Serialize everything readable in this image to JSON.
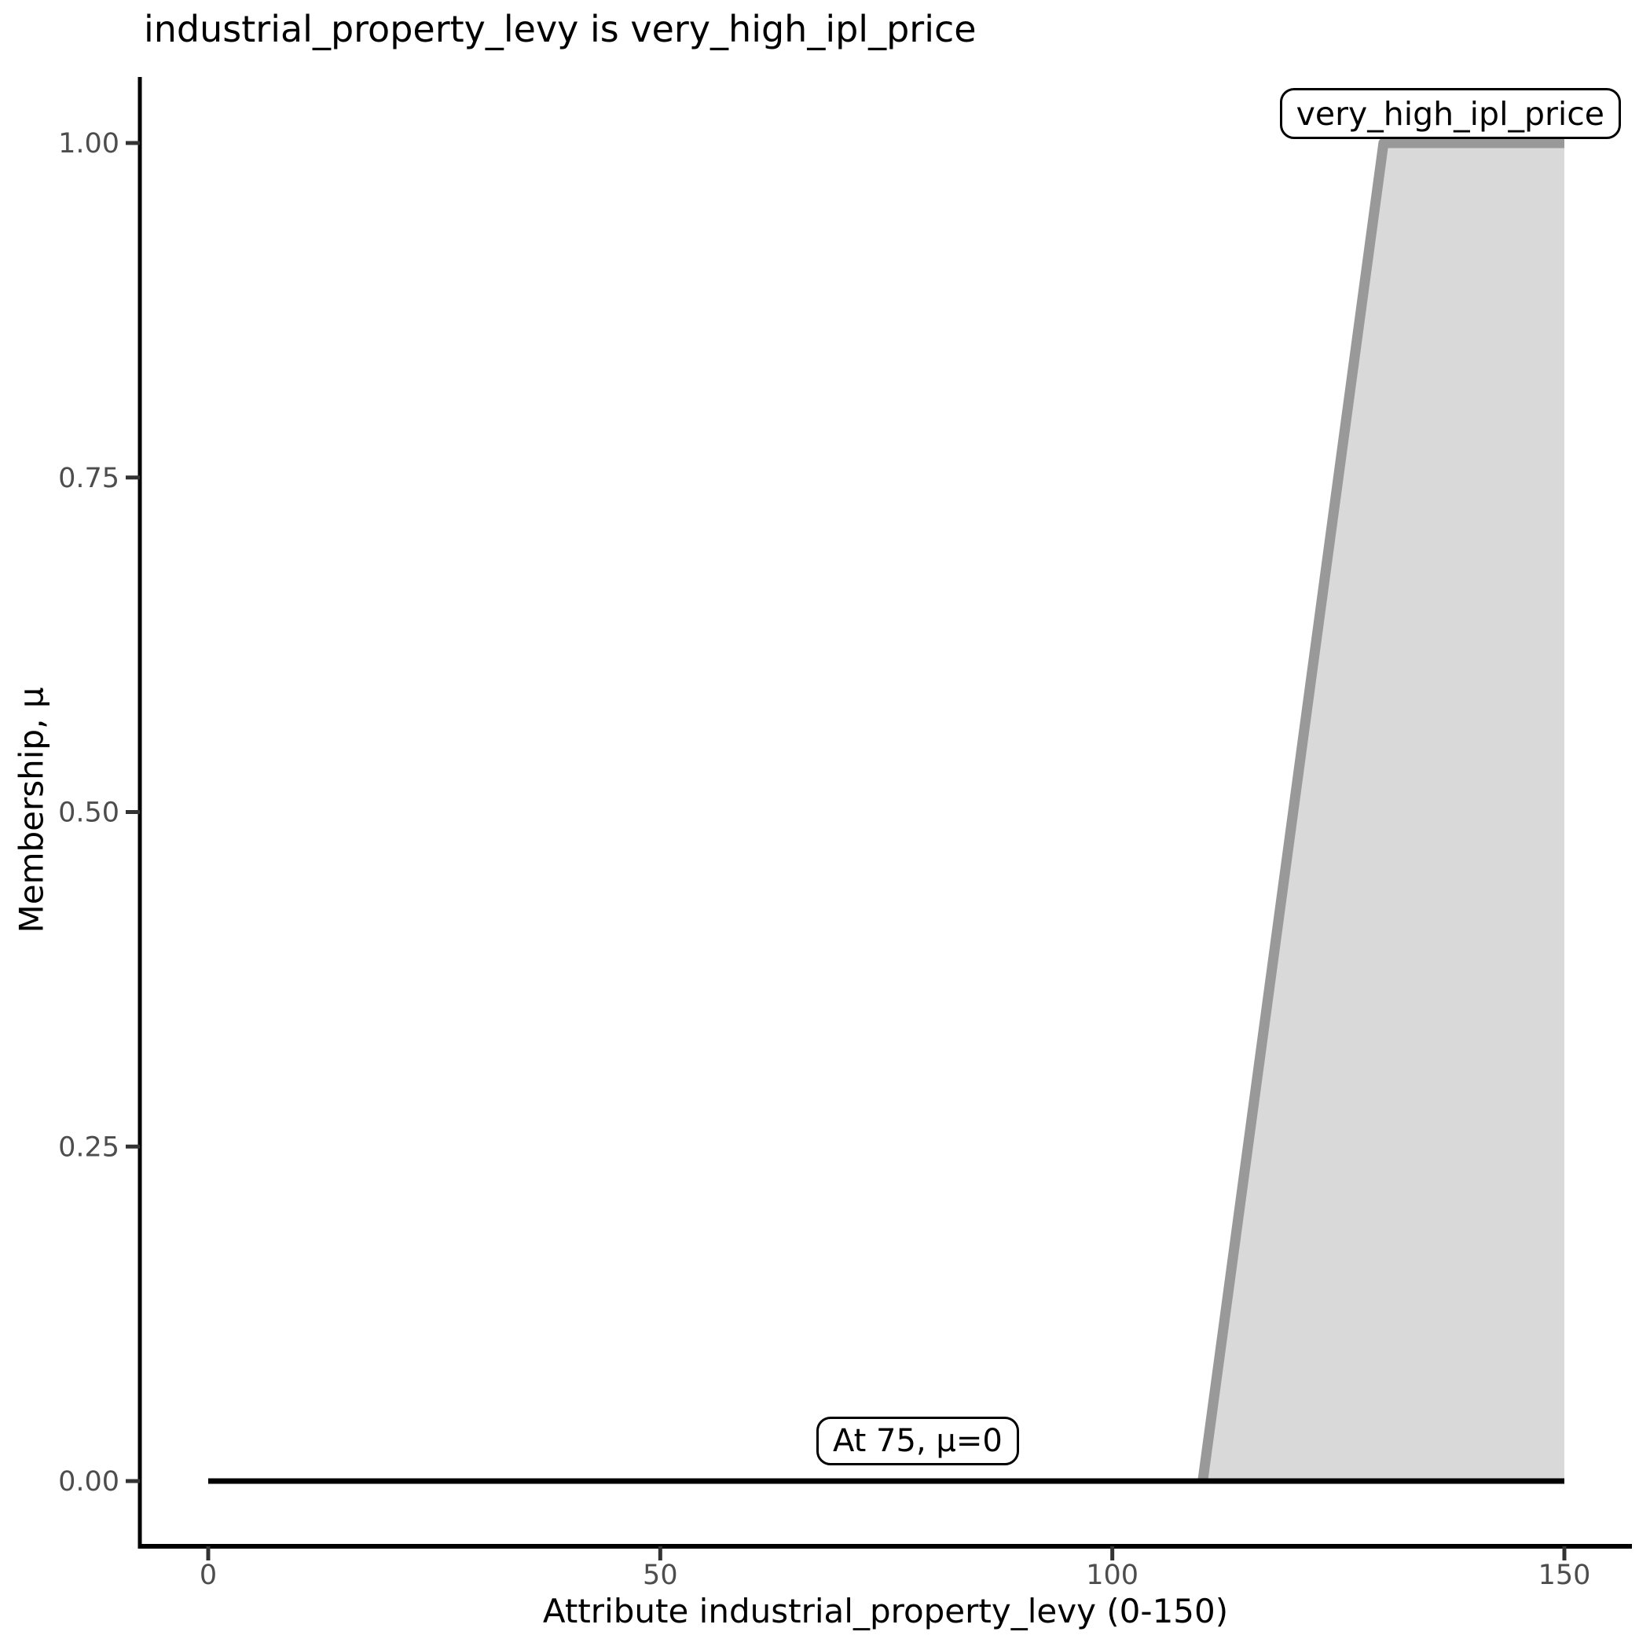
{
  "chart_data": {
    "type": "area",
    "title": "industrial_property_levy is very_high_ipl_price",
    "xlabel": "Attribute industrial_property_levy (0-150)",
    "ylabel": "Membership, μ",
    "xlim": [
      0,
      150
    ],
    "ylim": [
      0,
      1
    ],
    "x_ticks": [
      0,
      50,
      100,
      150
    ],
    "x_tick_labels": [
      "0",
      "50",
      "100",
      "150"
    ],
    "y_ticks": [
      0,
      0.25,
      0.5,
      0.75,
      1
    ],
    "y_tick_labels": [
      "0.00",
      "0.25",
      "0.50",
      "0.75",
      "1.00"
    ],
    "grid": false,
    "legend": "none",
    "series": [
      {
        "name": "very_high_ipl_price",
        "type": "area",
        "points": [
          [
            110,
            0
          ],
          [
            130,
            1
          ],
          [
            150,
            1
          ]
        ],
        "fill": "#d9d9d9",
        "stroke": "#999999",
        "stroke_width": 13,
        "description": "Trapezoidal membership function: mu=0 at 110, rises to mu=1 at 130, stays 1 until 150"
      },
      {
        "name": "input_membership_baseline",
        "type": "line",
        "points": [
          [
            0,
            0
          ],
          [
            150,
            0
          ]
        ],
        "stroke": "#000000",
        "stroke_width": 7,
        "description": "Membership level of the evaluated input: mu=0 across the whole 0-150 range"
      }
    ],
    "annotations": [
      {
        "text": "very_high_ipl_price",
        "anchor_x": 130,
        "anchor_y": 1
      },
      {
        "text": "At 75, μ=0",
        "anchor_x": 75,
        "anchor_y": 0
      }
    ],
    "colors": {
      "background": "#ffffff",
      "axis_line": "#000000",
      "tick_mark": "#333333",
      "tick_label": "#4d4d4d",
      "title_text": "#000000",
      "area_fill": "#d9d9d9",
      "area_stroke": "#999999",
      "baseline": "#000000",
      "annotation_border": "#000000",
      "annotation_background": "#ffffff"
    }
  }
}
